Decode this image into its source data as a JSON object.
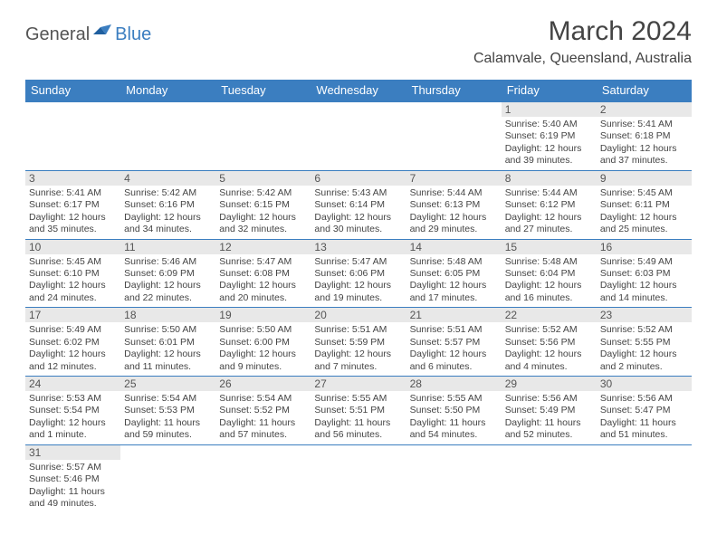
{
  "logo": {
    "text1": "General",
    "text2": "Blue"
  },
  "title": "March 2024",
  "location": "Calamvale, Queensland, Australia",
  "colors": {
    "header_bg": "#3b7ec0",
    "header_text": "#ffffff",
    "daynum_bg": "#e8e8e8",
    "text": "#444444",
    "border": "#3b7ec0"
  },
  "daynames": [
    "Sunday",
    "Monday",
    "Tuesday",
    "Wednesday",
    "Thursday",
    "Friday",
    "Saturday"
  ],
  "weeks": [
    [
      null,
      null,
      null,
      null,
      null,
      {
        "n": "1",
        "sr": "Sunrise: 5:40 AM",
        "ss": "Sunset: 6:19 PM",
        "dl1": "Daylight: 12 hours",
        "dl2": "and 39 minutes."
      },
      {
        "n": "2",
        "sr": "Sunrise: 5:41 AM",
        "ss": "Sunset: 6:18 PM",
        "dl1": "Daylight: 12 hours",
        "dl2": "and 37 minutes."
      }
    ],
    [
      {
        "n": "3",
        "sr": "Sunrise: 5:41 AM",
        "ss": "Sunset: 6:17 PM",
        "dl1": "Daylight: 12 hours",
        "dl2": "and 35 minutes."
      },
      {
        "n": "4",
        "sr": "Sunrise: 5:42 AM",
        "ss": "Sunset: 6:16 PM",
        "dl1": "Daylight: 12 hours",
        "dl2": "and 34 minutes."
      },
      {
        "n": "5",
        "sr": "Sunrise: 5:42 AM",
        "ss": "Sunset: 6:15 PM",
        "dl1": "Daylight: 12 hours",
        "dl2": "and 32 minutes."
      },
      {
        "n": "6",
        "sr": "Sunrise: 5:43 AM",
        "ss": "Sunset: 6:14 PM",
        "dl1": "Daylight: 12 hours",
        "dl2": "and 30 minutes."
      },
      {
        "n": "7",
        "sr": "Sunrise: 5:44 AM",
        "ss": "Sunset: 6:13 PM",
        "dl1": "Daylight: 12 hours",
        "dl2": "and 29 minutes."
      },
      {
        "n": "8",
        "sr": "Sunrise: 5:44 AM",
        "ss": "Sunset: 6:12 PM",
        "dl1": "Daylight: 12 hours",
        "dl2": "and 27 minutes."
      },
      {
        "n": "9",
        "sr": "Sunrise: 5:45 AM",
        "ss": "Sunset: 6:11 PM",
        "dl1": "Daylight: 12 hours",
        "dl2": "and 25 minutes."
      }
    ],
    [
      {
        "n": "10",
        "sr": "Sunrise: 5:45 AM",
        "ss": "Sunset: 6:10 PM",
        "dl1": "Daylight: 12 hours",
        "dl2": "and 24 minutes."
      },
      {
        "n": "11",
        "sr": "Sunrise: 5:46 AM",
        "ss": "Sunset: 6:09 PM",
        "dl1": "Daylight: 12 hours",
        "dl2": "and 22 minutes."
      },
      {
        "n": "12",
        "sr": "Sunrise: 5:47 AM",
        "ss": "Sunset: 6:08 PM",
        "dl1": "Daylight: 12 hours",
        "dl2": "and 20 minutes."
      },
      {
        "n": "13",
        "sr": "Sunrise: 5:47 AM",
        "ss": "Sunset: 6:06 PM",
        "dl1": "Daylight: 12 hours",
        "dl2": "and 19 minutes."
      },
      {
        "n": "14",
        "sr": "Sunrise: 5:48 AM",
        "ss": "Sunset: 6:05 PM",
        "dl1": "Daylight: 12 hours",
        "dl2": "and 17 minutes."
      },
      {
        "n": "15",
        "sr": "Sunrise: 5:48 AM",
        "ss": "Sunset: 6:04 PM",
        "dl1": "Daylight: 12 hours",
        "dl2": "and 16 minutes."
      },
      {
        "n": "16",
        "sr": "Sunrise: 5:49 AM",
        "ss": "Sunset: 6:03 PM",
        "dl1": "Daylight: 12 hours",
        "dl2": "and 14 minutes."
      }
    ],
    [
      {
        "n": "17",
        "sr": "Sunrise: 5:49 AM",
        "ss": "Sunset: 6:02 PM",
        "dl1": "Daylight: 12 hours",
        "dl2": "and 12 minutes."
      },
      {
        "n": "18",
        "sr": "Sunrise: 5:50 AM",
        "ss": "Sunset: 6:01 PM",
        "dl1": "Daylight: 12 hours",
        "dl2": "and 11 minutes."
      },
      {
        "n": "19",
        "sr": "Sunrise: 5:50 AM",
        "ss": "Sunset: 6:00 PM",
        "dl1": "Daylight: 12 hours",
        "dl2": "and 9 minutes."
      },
      {
        "n": "20",
        "sr": "Sunrise: 5:51 AM",
        "ss": "Sunset: 5:59 PM",
        "dl1": "Daylight: 12 hours",
        "dl2": "and 7 minutes."
      },
      {
        "n": "21",
        "sr": "Sunrise: 5:51 AM",
        "ss": "Sunset: 5:57 PM",
        "dl1": "Daylight: 12 hours",
        "dl2": "and 6 minutes."
      },
      {
        "n": "22",
        "sr": "Sunrise: 5:52 AM",
        "ss": "Sunset: 5:56 PM",
        "dl1": "Daylight: 12 hours",
        "dl2": "and 4 minutes."
      },
      {
        "n": "23",
        "sr": "Sunrise: 5:52 AM",
        "ss": "Sunset: 5:55 PM",
        "dl1": "Daylight: 12 hours",
        "dl2": "and 2 minutes."
      }
    ],
    [
      {
        "n": "24",
        "sr": "Sunrise: 5:53 AM",
        "ss": "Sunset: 5:54 PM",
        "dl1": "Daylight: 12 hours",
        "dl2": "and 1 minute."
      },
      {
        "n": "25",
        "sr": "Sunrise: 5:54 AM",
        "ss": "Sunset: 5:53 PM",
        "dl1": "Daylight: 11 hours",
        "dl2": "and 59 minutes."
      },
      {
        "n": "26",
        "sr": "Sunrise: 5:54 AM",
        "ss": "Sunset: 5:52 PM",
        "dl1": "Daylight: 11 hours",
        "dl2": "and 57 minutes."
      },
      {
        "n": "27",
        "sr": "Sunrise: 5:55 AM",
        "ss": "Sunset: 5:51 PM",
        "dl1": "Daylight: 11 hours",
        "dl2": "and 56 minutes."
      },
      {
        "n": "28",
        "sr": "Sunrise: 5:55 AM",
        "ss": "Sunset: 5:50 PM",
        "dl1": "Daylight: 11 hours",
        "dl2": "and 54 minutes."
      },
      {
        "n": "29",
        "sr": "Sunrise: 5:56 AM",
        "ss": "Sunset: 5:49 PM",
        "dl1": "Daylight: 11 hours",
        "dl2": "and 52 minutes."
      },
      {
        "n": "30",
        "sr": "Sunrise: 5:56 AM",
        "ss": "Sunset: 5:47 PM",
        "dl1": "Daylight: 11 hours",
        "dl2": "and 51 minutes."
      }
    ],
    [
      {
        "n": "31",
        "sr": "Sunrise: 5:57 AM",
        "ss": "Sunset: 5:46 PM",
        "dl1": "Daylight: 11 hours",
        "dl2": "and 49 minutes."
      },
      null,
      null,
      null,
      null,
      null,
      null
    ]
  ]
}
